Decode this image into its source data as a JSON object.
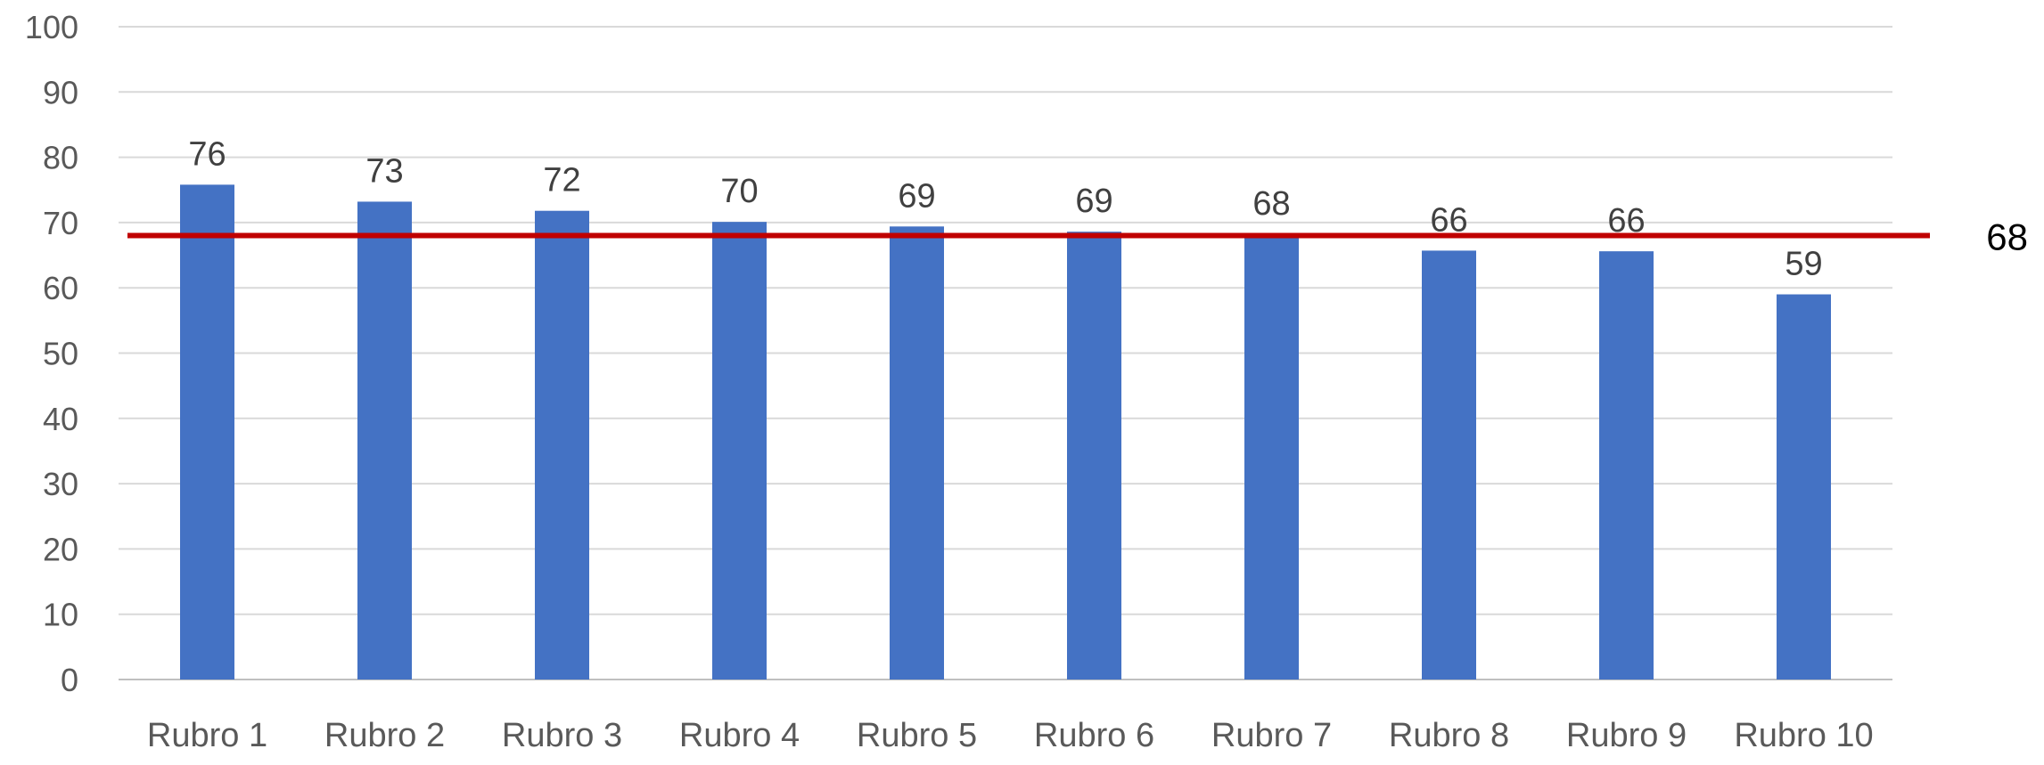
{
  "chart_data": {
    "type": "bar",
    "categories": [
      "Rubro 1",
      "Rubro 2",
      "Rubro 3",
      "Rubro 4",
      "Rubro 5",
      "Rubro 6",
      "Rubro 7",
      "Rubro 8",
      "Rubro 9",
      "Rubro 10"
    ],
    "values": [
      75.8,
      73.2,
      71.8,
      70.1,
      69.4,
      68.6,
      68.2,
      65.7,
      65.6,
      59.0
    ],
    "data_labels": [
      "76",
      "73",
      "72",
      "70",
      "69",
      "69",
      "68",
      "66",
      "66",
      "59"
    ],
    "ylim": [
      0,
      100
    ],
    "yticks": [
      0,
      10,
      20,
      30,
      40,
      50,
      60,
      70,
      80,
      90,
      100
    ],
    "reference_line": {
      "value": 68,
      "label": "68",
      "color": "#c00000"
    },
    "bar_color": "#4472c4",
    "grid": true,
    "legend": "none"
  }
}
